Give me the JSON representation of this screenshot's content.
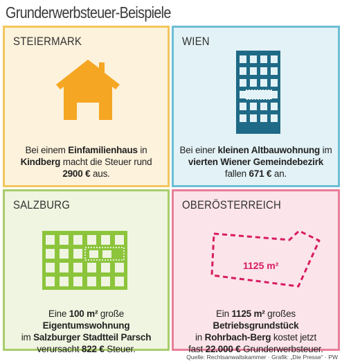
{
  "title": "Grunderwerbsteuer-Beispiele",
  "colors": {
    "steiermark_bg": "#fdf2dc",
    "steiermark_border": "#f2c65a",
    "steiermark_icon": "#f5a623",
    "wien_bg": "#e3f2f6",
    "wien_border": "#6bbed4",
    "wien_icon": "#1f6a86",
    "salzburg_bg": "#eff5e0",
    "salzburg_border": "#a9cc6b",
    "salzburg_icon": "#8cc43c",
    "oberoesterreich_bg": "#fbe4ea",
    "oberoesterreich_border": "#e87e99",
    "oberoesterreich_icon": "#d81b60"
  },
  "panels": {
    "steiermark": {
      "name": "STEIERMARK",
      "icon": "house-icon",
      "t1": "Bei einem ",
      "t2": "Einfamilienhaus",
      "t3": " in",
      "t4": "Kindberg",
      "t5": " macht die Steuer rund",
      "t6": "2900 €",
      "t7": " aus."
    },
    "wien": {
      "name": "WIEN",
      "icon": "apartment-building-icon",
      "t1": "Bei einer ",
      "t2": "kleinen Altbauwohnung",
      "t3": " im",
      "t4": "vierten Wiener Gemeindebezirk",
      "t5": "fallen ",
      "t6": "671 €",
      "t7": " an."
    },
    "salzburg": {
      "name": "SALZBURG",
      "icon": "apartment-block-icon",
      "t1": "Eine ",
      "t2": "100 m²",
      "t3": " große ",
      "t4": "Eigentumswohnung",
      "t5": "im ",
      "t6": "Salzburger Stadtteil Parsch",
      "t7": "verursacht ",
      "t8": "822 €",
      "t9": " Steuer."
    },
    "oberoesterreich": {
      "name": "OBERÖSTERREICH",
      "icon": "land-plot-icon",
      "plot_label": "1125 m²",
      "t1": "Ein ",
      "t2": "1125 m²",
      "t3": " großes ",
      "t4": "Betriebsgrundstück",
      "t5": "in ",
      "t6": "Rohrbach-Berg",
      "t7": " kostet jetzt",
      "t8": "fast ",
      "t9": "22.000 €",
      "t10": " Grunderwerbsteuer."
    }
  },
  "source": "Quelle: Rechtsanwaltskammer · Grafik: „Die Presse“ · PW"
}
